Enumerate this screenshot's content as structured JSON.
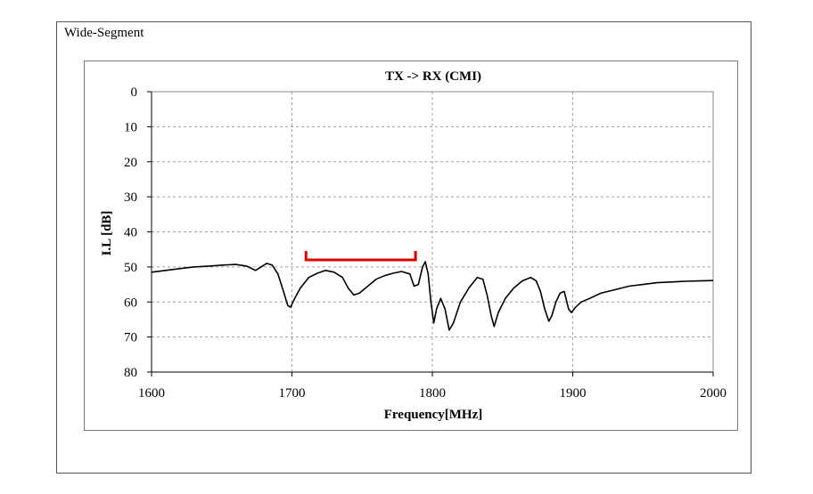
{
  "frame": {
    "label": "Wide-Segment"
  },
  "colors": {
    "series": "#000000",
    "marker": "#e00000",
    "grid": "#a0a0a0"
  },
  "chart_data": {
    "type": "line",
    "title": "TX -> RX (CMI)",
    "xlabel": "Frequency[MHz]",
    "ylabel": "I.L [dB]",
    "xlim": [
      1600,
      2000
    ],
    "ylim": [
      0,
      80
    ],
    "y_inverted": true,
    "x_ticks": [
      1600,
      1700,
      1800,
      1900,
      2000
    ],
    "y_ticks": [
      0,
      10,
      20,
      30,
      40,
      50,
      60,
      70,
      80
    ],
    "grid": true,
    "legend": "none",
    "series": [
      {
        "x": [
          1600,
          1610,
          1620,
          1630,
          1640,
          1650,
          1660,
          1668,
          1674,
          1678,
          1682,
          1686,
          1690,
          1694,
          1697,
          1699,
          1702,
          1706,
          1712,
          1718,
          1724,
          1730,
          1736,
          1740,
          1744,
          1748,
          1754,
          1760,
          1766,
          1772,
          1778,
          1784,
          1787,
          1790,
          1793,
          1795,
          1797,
          1799,
          1801,
          1803,
          1806,
          1809,
          1812,
          1815,
          1820,
          1826,
          1832,
          1836,
          1839,
          1842,
          1844,
          1847,
          1852,
          1858,
          1864,
          1870,
          1874,
          1877,
          1880,
          1883,
          1885,
          1888,
          1891,
          1894,
          1897,
          1899,
          1902,
          1906,
          1912,
          1920,
          1930,
          1940,
          1950,
          1960,
          1970,
          1980,
          1990,
          2000
        ],
        "values": [
          51.5,
          51,
          50.5,
          50,
          49.8,
          49.5,
          49.3,
          49.8,
          51,
          50,
          49,
          49.5,
          52,
          57,
          61,
          61.5,
          59,
          56,
          53,
          51.8,
          51,
          51.5,
          53,
          56,
          58,
          57.5,
          55.5,
          53.5,
          52.5,
          51.8,
          51.3,
          52,
          55.5,
          55,
          50,
          48.5,
          52,
          60,
          66,
          62,
          59,
          62,
          68,
          66,
          60,
          56,
          53,
          53.5,
          58,
          64,
          67,
          63,
          59,
          56,
          54,
          53,
          54,
          57,
          62,
          65.5,
          64,
          60,
          57.5,
          57,
          62,
          63,
          61.5,
          60,
          59,
          57.5,
          56.5,
          55.5,
          55,
          54.5,
          54.3,
          54.1,
          54,
          53.9
        ]
      }
    ],
    "annotations": [
      {
        "type": "bracket",
        "x_start": 1710,
        "x_end": 1788,
        "y": 48
      }
    ]
  }
}
